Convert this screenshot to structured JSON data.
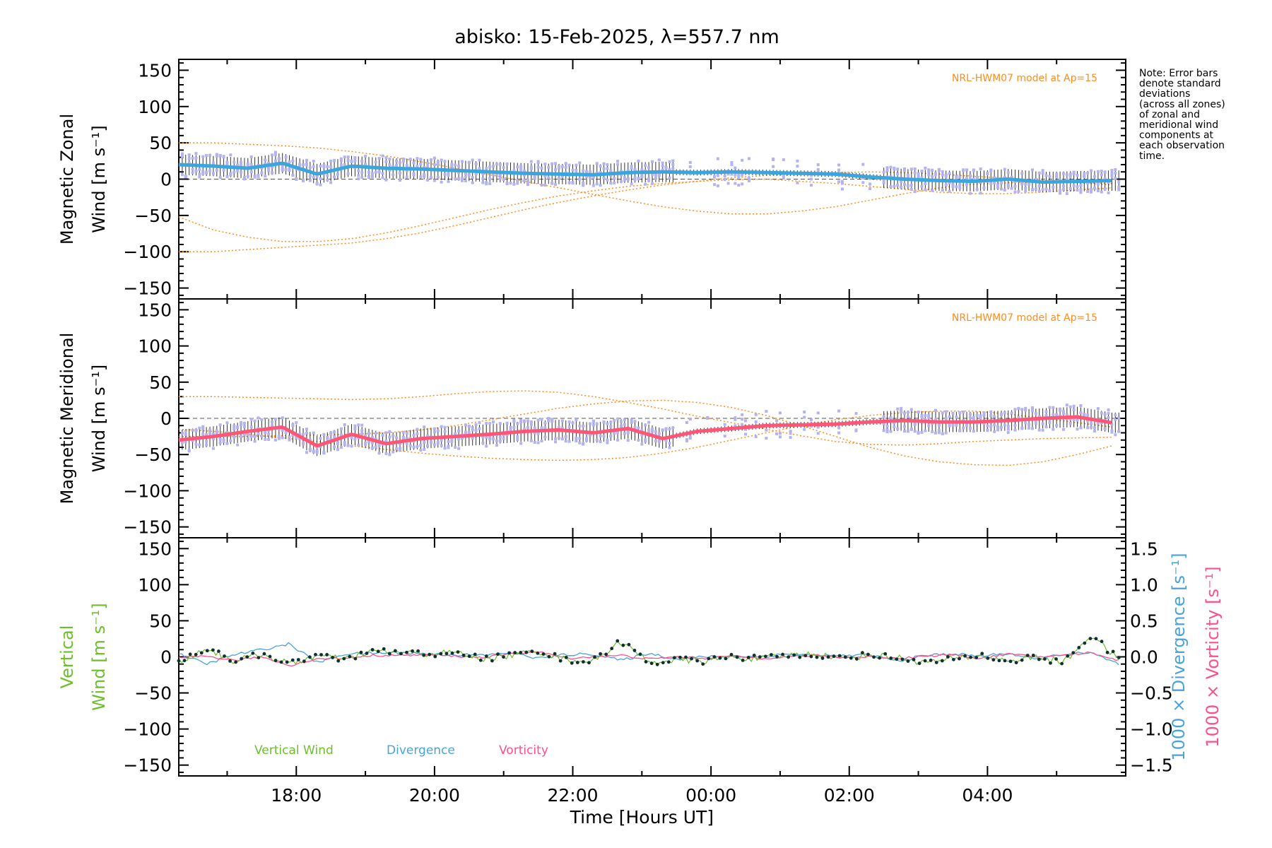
{
  "title": "abisko: 15-Feb-2025, λ=557.7 nm",
  "note": {
    "lines": [
      "Note: Error bars",
      "denote standard",
      "deviations",
      "(across all zones)",
      "of zonal and",
      "meridional wind",
      "components at",
      "each observation",
      "time."
    ]
  },
  "colors": {
    "model": "#ff8c1a",
    "zonal": "#3aa6dd",
    "meridional": "#ff5577",
    "zone_points": "#b3b3ee",
    "vertical": "#6cbf2a",
    "divergence": "#4aa3d8",
    "vorticity": "#ff4f8a",
    "points": "#103030"
  },
  "chart_data": [
    {
      "type": "line",
      "panel": "zonal",
      "ylabel_lines": [
        "Magnetic Zonal",
        "Wind [m s⁻¹]"
      ],
      "model_label": "NRL-HWM07 model at Ap=15",
      "xlim": [
        16.3,
        30.0
      ],
      "ylim": [
        -165,
        165
      ],
      "yticks": [
        150,
        100,
        50,
        0,
        -50,
        -100,
        -150
      ],
      "grid": false,
      "x": [
        16.3,
        16.8,
        17.3,
        17.8,
        18.3,
        18.8,
        19.3,
        19.8,
        20.3,
        20.8,
        21.3,
        21.8,
        22.3,
        22.8,
        23.3,
        23.8,
        24.3,
        24.8,
        25.3,
        25.8,
        26.3,
        26.8,
        27.3,
        27.8,
        28.3,
        28.8,
        29.3,
        29.8
      ],
      "series": [
        {
          "role": "wind",
          "values": [
            20,
            18,
            15,
            22,
            7,
            18,
            15,
            14,
            12,
            10,
            8,
            7,
            6,
            9,
            10,
            9,
            10,
            9,
            8,
            7,
            3,
            0,
            -2,
            -3,
            0,
            -4,
            -3,
            -2
          ]
        },
        {
          "role": "model",
          "values": [
            50,
            50,
            48,
            46,
            43,
            38,
            32,
            24,
            15,
            6,
            -3,
            -12,
            -21,
            -30,
            -38,
            -44,
            -48,
            -48,
            -44,
            -38,
            -29,
            -20,
            -12,
            -7,
            -5,
            -4,
            -5,
            -6
          ]
        },
        {
          "role": "model",
          "values": [
            -100,
            -100,
            -97,
            -94,
            -91,
            -88,
            -82,
            -74,
            -64,
            -53,
            -42,
            -32,
            -23,
            -15,
            -8,
            -3,
            2,
            5,
            7,
            9,
            10,
            9,
            7,
            4,
            1,
            -2,
            -5,
            -8
          ]
        },
        {
          "role": "model",
          "values": [
            -52,
            -70,
            -80,
            -86,
            -86,
            -82,
            -74,
            -64,
            -53,
            -42,
            -32,
            -23,
            -16,
            -10,
            -6,
            -3,
            -1,
            0,
            -3,
            -6,
            -10,
            -14,
            -18,
            -20,
            -20,
            -18,
            -15,
            -12
          ]
        }
      ]
    },
    {
      "type": "line",
      "panel": "meridional",
      "ylabel_lines": [
        "Magnetic Meridional",
        "Wind [m s⁻¹]"
      ],
      "model_label": "NRL-HWM07 model at Ap=15",
      "xlim": [
        16.3,
        30.0
      ],
      "ylim": [
        -165,
        165
      ],
      "yticks": [
        150,
        100,
        50,
        0,
        -50,
        -100,
        -150
      ],
      "grid": false,
      "x": [
        16.3,
        16.8,
        17.3,
        17.8,
        18.3,
        18.8,
        19.3,
        19.8,
        20.3,
        20.8,
        21.3,
        21.8,
        22.3,
        22.8,
        23.3,
        23.8,
        24.3,
        24.8,
        25.3,
        25.8,
        26.3,
        26.8,
        27.3,
        27.8,
        28.3,
        28.8,
        29.3,
        29.8
      ],
      "series": [
        {
          "role": "wind",
          "values": [
            -30,
            -25,
            -18,
            -12,
            -38,
            -22,
            -35,
            -28,
            -25,
            -22,
            -18,
            -16,
            -20,
            -14,
            -28,
            -18,
            -14,
            -10,
            -9,
            -8,
            -5,
            -3,
            -5,
            -5,
            -3,
            0,
            2,
            -6
          ]
        },
        {
          "role": "model",
          "values": [
            30,
            30,
            29,
            28,
            27,
            26,
            27,
            30,
            34,
            37,
            38,
            36,
            30,
            22,
            13,
            3,
            -6,
            -15,
            -24,
            -32,
            -36,
            -37,
            -35,
            -32,
            -30,
            -28,
            -27,
            -26
          ]
        },
        {
          "role": "model",
          "values": [
            -15,
            -18,
            -22,
            -27,
            -32,
            -38,
            -43,
            -48,
            -52,
            -55,
            -57,
            -58,
            -57,
            -54,
            -48,
            -40,
            -30,
            -20,
            -10,
            -2,
            4,
            8,
            10,
            10,
            6,
            0,
            -6,
            -12
          ]
        },
        {
          "role": "model",
          "values": [
            -25,
            -25,
            -25,
            -24,
            -23,
            -22,
            -20,
            -16,
            -10,
            -2,
            6,
            14,
            20,
            24,
            25,
            22,
            15,
            4,
            -10,
            -25,
            -40,
            -52,
            -60,
            -64,
            -65,
            -60,
            -50,
            -38
          ]
        }
      ]
    },
    {
      "type": "line",
      "panel": "vertical",
      "ylabel_lines": [
        "Vertical",
        "Wind [m s⁻¹]"
      ],
      "xlabel": "Time [Hours UT]",
      "xlim": [
        16.3,
        30.0
      ],
      "xticks": [
        18,
        20,
        22,
        24,
        26,
        28
      ],
      "xtick_labels": [
        "18:00",
        "20:00",
        "22:00",
        "00:00",
        "02:00",
        "04:00"
      ],
      "ylim": [
        -165,
        165
      ],
      "yticks": [
        150,
        100,
        50,
        0,
        -50,
        -100,
        -150
      ],
      "y2label_divergence": "1000 × Divergence [s⁻¹]",
      "y2label_vorticity": "1000 × Vorticity [s⁻¹]",
      "y2lim": [
        -1.65,
        1.65
      ],
      "y2ticks": [
        1.5,
        1.0,
        0.5,
        0.0,
        -0.5,
        -1.0,
        -1.5
      ],
      "y2tick_labels": [
        "1.5",
        "1.0",
        "0.5",
        "0.0",
        "−0.5",
        "−1.0",
        "−1.5"
      ],
      "grid": false,
      "legend": [
        "Vertical Wind",
        "Divergence",
        "Vorticity"
      ],
      "x": [
        16.3,
        16.7,
        17.1,
        17.5,
        17.9,
        18.3,
        18.7,
        19.1,
        19.5,
        19.9,
        20.3,
        20.7,
        21.1,
        21.5,
        21.9,
        22.3,
        22.7,
        23.1,
        23.5,
        23.9,
        24.3,
        24.7,
        25.1,
        25.5,
        25.9,
        26.3,
        26.7,
        27.1,
        27.5,
        27.9,
        28.3,
        28.7,
        29.1,
        29.5,
        29.9
      ],
      "series": [
        {
          "name": "Vertical Wind",
          "values": [
            -8,
            12,
            -6,
            4,
            -10,
            2,
            -4,
            8,
            6,
            4,
            6,
            -3,
            2,
            8,
            -4,
            -6,
            22,
            -8,
            -4,
            -6,
            0,
            -3,
            2,
            4,
            -2,
            3,
            -1,
            -8,
            -3,
            2,
            -6,
            0,
            -8,
            30,
            -4
          ]
        },
        {
          "name": "Divergence",
          "values": [
            0.04,
            -0.1,
            0.03,
            0.1,
            0.18,
            -0.08,
            0.04,
            0.05,
            0.06,
            0.04,
            0.03,
            0.02,
            0.06,
            -0.02,
            0.03,
            0.04,
            -0.05,
            0.05,
            -0.03,
            0.0,
            0.01,
            0.0,
            0.04,
            0.02,
            0.01,
            0.03,
            -0.06,
            0.02,
            0.04,
            0.01,
            0.05,
            -0.04,
            0.04,
            0.05,
            -0.1
          ]
        },
        {
          "name": "Vorticity",
          "values": [
            -0.02,
            0.01,
            -0.05,
            0.0,
            -0.12,
            -0.03,
            -0.02,
            0.02,
            0.02,
            0.03,
            0.01,
            -0.01,
            0.04,
            0.07,
            -0.02,
            0.0,
            0.02,
            -0.03,
            0.0,
            -0.02,
            0.01,
            -0.02,
            0.0,
            0.02,
            -0.01,
            0.0,
            -0.02,
            0.01,
            0.03,
            -0.02,
            0.04,
            0.0,
            0.02,
            0.06,
            -0.05
          ]
        }
      ]
    }
  ]
}
